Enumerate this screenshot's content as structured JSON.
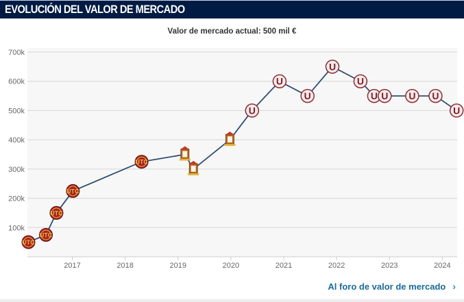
{
  "header": {
    "title": "Evolución del valor de mercado"
  },
  "subtitle": "Valor de mercado actual: 500 mil €",
  "footer": {
    "link_label": "Al foro de valor de mercado",
    "link_icon": "chevron-right-icon"
  },
  "colors": {
    "header_bg": "#001b43",
    "line": "#2f4e74",
    "link": "#1a6a96",
    "marker_utc_fill": "#a8231c",
    "marker_utc_ring": "#e9b24a",
    "marker_u_fill": "#f5e9e9",
    "marker_u_ring": "#8a2c35",
    "marker_castle": "#c0392b"
  },
  "chart_data": {
    "type": "line",
    "title": "",
    "xlabel": "",
    "ylabel": "",
    "xlim": [
      2016.15,
      2024.28
    ],
    "ylim": [
      0,
      700000
    ],
    "x_ticks": [
      2017,
      2018,
      2019,
      2020,
      2021,
      2022,
      2023,
      2024
    ],
    "x_tick_labels": [
      "2017",
      "2018",
      "2019",
      "2020",
      "2021",
      "2022",
      "2023",
      "2024"
    ],
    "y_ticks": [
      100000,
      200000,
      300000,
      400000,
      500000,
      600000,
      700000
    ],
    "y_tick_labels": [
      "100k",
      "200k",
      "300k",
      "400k",
      "500k",
      "600k",
      "700k"
    ],
    "grid": true,
    "legend": "none",
    "series": [
      {
        "name": "Valor de mercado",
        "points": [
          {
            "x": 2016.17,
            "y": 50000,
            "club": "UTC Cajamarca"
          },
          {
            "x": 2016.5,
            "y": 75000,
            "club": "UTC Cajamarca"
          },
          {
            "x": 2016.7,
            "y": 150000,
            "club": "UTC Cajamarca"
          },
          {
            "x": 2017.01,
            "y": 225000,
            "club": "UTC Cajamarca"
          },
          {
            "x": 2018.31,
            "y": 325000,
            "club": "UTC Cajamarca"
          },
          {
            "x": 2019.13,
            "y": 350000,
            "club": "Castle crest club"
          },
          {
            "x": 2019.29,
            "y": 300000,
            "club": "Castle crest club"
          },
          {
            "x": 2019.98,
            "y": 400000,
            "club": "Castle crest club"
          },
          {
            "x": 2020.4,
            "y": 500000,
            "club": "Universitario"
          },
          {
            "x": 2020.92,
            "y": 600000,
            "club": "Universitario"
          },
          {
            "x": 2021.45,
            "y": 550000,
            "club": "Universitario"
          },
          {
            "x": 2021.92,
            "y": 650000,
            "club": "Universitario"
          },
          {
            "x": 2022.45,
            "y": 600000,
            "club": "Universitario"
          },
          {
            "x": 2022.71,
            "y": 550000,
            "club": "Universitario"
          },
          {
            "x": 2022.91,
            "y": 550000,
            "club": "Universitario"
          },
          {
            "x": 2023.43,
            "y": 550000,
            "club": "Universitario"
          },
          {
            "x": 2023.87,
            "y": 550000,
            "club": "Universitario"
          },
          {
            "x": 2024.27,
            "y": 500000,
            "club": "Universitario"
          }
        ]
      }
    ]
  }
}
